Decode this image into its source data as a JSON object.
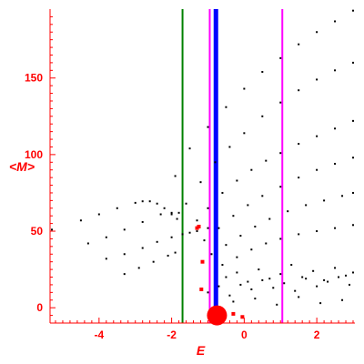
{
  "chart_data": {
    "type": "scatter",
    "title": "",
    "xlabel": "E",
    "ylabel": "<M>",
    "xlim": [
      -5.35,
      3.05
    ],
    "ylim": [
      -10,
      195
    ],
    "grid": false,
    "legend": "none",
    "axis_color": "#ff0000",
    "x_ticks": [
      -4,
      -2,
      0,
      2
    ],
    "x_tick_labels": [
      "-4",
      "-2",
      "0",
      "2"
    ],
    "y_ticks": [
      0,
      50,
      100,
      150
    ],
    "y_tick_labels": [
      "0",
      "50",
      "100",
      "150"
    ],
    "vertical_lines": [
      {
        "x": -1.7,
        "color": "#008000",
        "width": "thin"
      },
      {
        "x": -0.95,
        "color": "#ff00ff",
        "width": "thin"
      },
      {
        "x": -0.78,
        "color": "#0000ff",
        "width": "thick"
      },
      {
        "x": 1.05,
        "color": "#ff00ff",
        "width": "thin"
      }
    ],
    "red_markers": [
      {
        "x": -0.75,
        "y": -5,
        "size": "large"
      },
      {
        "x": -1.3,
        "y": 52,
        "size": "small"
      },
      {
        "x": -1.25,
        "y": 53,
        "size": "small"
      },
      {
        "x": -1.15,
        "y": 30,
        "size": "small"
      },
      {
        "x": -1.18,
        "y": 12,
        "size": "small"
      },
      {
        "x": -0.3,
        "y": -4,
        "size": "small"
      },
      {
        "x": -0.05,
        "y": -6,
        "size": "small"
      }
    ],
    "series": [
      {
        "color": "#000000",
        "x": [
          -5.3,
          -4.5,
          -4.0,
          -3.5,
          -3.0,
          -2.8,
          -2.6,
          -2.4,
          -2.2,
          -2.0,
          -1.85
        ],
        "y": [
          51,
          57,
          61,
          65,
          68.5,
          69.5,
          69.5,
          68,
          65,
          61,
          58
        ]
      },
      {
        "color": "#000000",
        "x": [
          -4.3,
          -3.8,
          -3.3,
          -2.8,
          -2.3,
          -2.0,
          -1.8
        ],
        "y": [
          42,
          46,
          51,
          56,
          61,
          62,
          62
        ]
      },
      {
        "color": "#000000",
        "x": [
          -3.8,
          -3.3,
          -2.8,
          -2.4,
          -2.0,
          -1.7,
          -1.5,
          -1.3,
          -1.0
        ],
        "y": [
          32,
          35,
          39,
          43,
          46,
          48,
          49,
          50,
          52
        ]
      },
      {
        "color": "#000000",
        "x": [
          -3.3,
          -2.9,
          -2.5,
          -2.1,
          -1.9
        ],
        "y": [
          22,
          26,
          30,
          34,
          36
        ]
      },
      {
        "color": "#000000",
        "x": [
          -1.9,
          -1.5,
          -1.0,
          -0.5,
          0,
          0.5,
          1.0,
          1.5,
          2.0,
          2.5,
          3.0
        ],
        "y": [
          86,
          104,
          118,
          131,
          143,
          154,
          163,
          172,
          180,
          187,
          194
        ]
      },
      {
        "color": "#000000",
        "x": [
          -1.6,
          -1.2,
          -0.8,
          -0.4,
          0,
          0.5,
          1.0,
          1.5,
          2.0,
          2.5,
          3.0
        ],
        "y": [
          68,
          82,
          95,
          105,
          114,
          125,
          134,
          142,
          149,
          155,
          160
        ]
      },
      {
        "color": "#000000",
        "x": [
          -1.3,
          -1.0,
          -0.6,
          -0.2,
          0.2,
          0.6,
          1.0,
          1.5,
          2.0,
          2.5,
          3.0
        ],
        "y": [
          57,
          65,
          75,
          83,
          90,
          96,
          101,
          107,
          112,
          117,
          122
        ]
      },
      {
        "color": "#000000",
        "x": [
          -1.1,
          -0.7,
          -0.3,
          0.1,
          0.5,
          1.0,
          1.5,
          2.0,
          2.5,
          3.0
        ],
        "y": [
          44,
          52,
          60,
          67,
          73,
          79,
          85,
          90,
          94,
          98
        ]
      },
      {
        "color": "#000000",
        "x": [
          -0.9,
          -0.5,
          -0.1,
          0.3,
          0.7,
          1.2,
          1.7,
          2.2,
          2.7,
          3.0
        ],
        "y": [
          35,
          41,
          47,
          53,
          58,
          63,
          67,
          70,
          73,
          75
        ]
      },
      {
        "color": "#000000",
        "x": [
          -0.6,
          -0.2,
          0.2,
          0.6,
          1.0,
          1.5,
          2.0,
          2.5,
          3.0
        ],
        "y": [
          28,
          33,
          38,
          42,
          45,
          48,
          50,
          52,
          54
        ]
      },
      {
        "color": "#000000",
        "x": [
          -0.5,
          -0.2,
          0.1,
          0.4,
          0.7,
          1.0,
          1.3,
          1.6,
          1.9,
          2.2,
          2.5,
          2.8,
          3.0
        ],
        "y": [
          20,
          23,
          17,
          25,
          19,
          22,
          28,
          20,
          24,
          18,
          26,
          21,
          23
        ]
      },
      {
        "color": "#000000",
        "x": [
          -1.0,
          -0.7,
          -0.4,
          -0.1,
          0.2,
          0.5,
          0.8,
          1.1,
          1.4,
          1.7,
          2.0,
          2.3,
          2.6,
          2.9
        ],
        "y": [
          10,
          14,
          8,
          15,
          12,
          18,
          13,
          16,
          11,
          19,
          14,
          17,
          20,
          15
        ]
      },
      {
        "color": "#000000",
        "x": [
          -0.3,
          0.3,
          0.9,
          1.5,
          2.1,
          2.7
        ],
        "y": [
          4,
          6,
          2,
          7,
          3,
          5
        ]
      }
    ]
  }
}
